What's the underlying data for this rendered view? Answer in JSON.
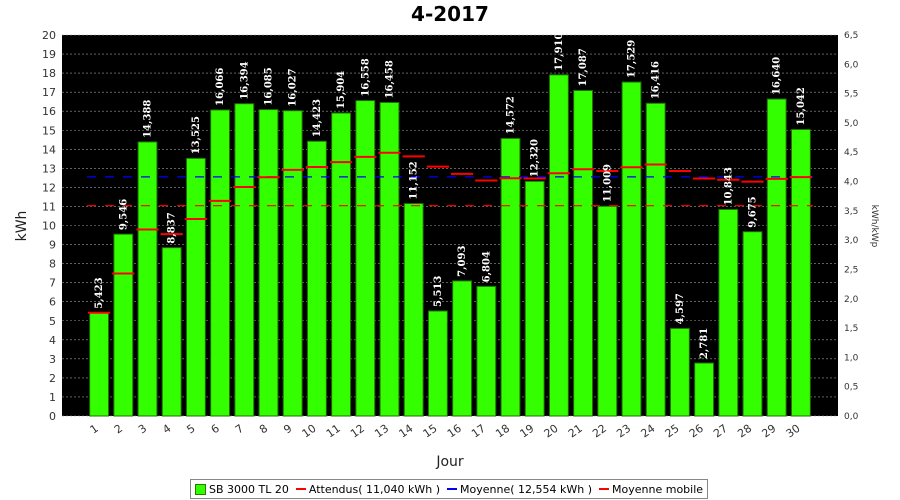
{
  "chart_data": {
    "type": "bar",
    "title": "4-2017",
    "xlabel": "Jour",
    "ylabel": "kWh",
    "ylabel_right": "kWh/kWp",
    "ylim": [
      0,
      20
    ],
    "ylim_right": [
      0,
      6.5
    ],
    "yticks": [
      "0",
      "1",
      "2",
      "3",
      "4",
      "5",
      "6",
      "7",
      "8",
      "9",
      "10",
      "11",
      "12",
      "13",
      "14",
      "15",
      "16",
      "17",
      "18",
      "19",
      "20"
    ],
    "yticks_right": [
      "0,0",
      "0,5",
      "1,0",
      "1,5",
      "2,0",
      "2,5",
      "3,0",
      "3,5",
      "4,0",
      "4,5",
      "5,0",
      "5,5",
      "6,0",
      "6,5"
    ],
    "categories": [
      "1",
      "2",
      "3",
      "4",
      "5",
      "6",
      "7",
      "8",
      "9",
      "10",
      "11",
      "12",
      "13",
      "14",
      "15",
      "16",
      "17",
      "18",
      "19",
      "20",
      "21",
      "22",
      "23",
      "24",
      "25",
      "26",
      "27",
      "28",
      "29",
      "30"
    ],
    "series": [
      {
        "name": "SB 3000 TL 20",
        "color": "#33ff00",
        "values": [
          5.423,
          9.546,
          14.388,
          8.837,
          13.525,
          16.066,
          16.394,
          16.085,
          16.027,
          14.423,
          15.904,
          16.558,
          16.458,
          11.152,
          5.513,
          7.093,
          6.804,
          14.572,
          12.32,
          17.91,
          17.087,
          11.009,
          17.529,
          16.416,
          4.597,
          2.781,
          10.843,
          9.675,
          16.64,
          15.042
        ],
        "labels": [
          "5,423",
          "9,546",
          "14,388",
          "8,837",
          "13,525",
          "16,066",
          "16,394",
          "16,085",
          "16,027",
          "14,423",
          "15,904",
          "16,558",
          "16,458",
          "11,152",
          "5,513",
          "7,093",
          "6,804",
          "14,572",
          "12,320",
          "17,910",
          "17,087",
          "11,009",
          "17,529",
          "16,416",
          "4,597",
          "2,781",
          "10,843",
          "9,675",
          "16,640",
          "15,042"
        ]
      },
      {
        "name": "Attendus( 11,040 kWh )",
        "color": "#ff0000",
        "type": "hline",
        "value": 11.04
      },
      {
        "name": "Moyenne( 12,554 kWh )",
        "color": "#0000ff",
        "type": "hline",
        "value": 12.554
      },
      {
        "name": "Moyenne mobile",
        "color": "#ff0000",
        "type": "step",
        "values": [
          5.42,
          7.48,
          9.79,
          9.55,
          10.34,
          11.29,
          12.02,
          12.53,
          12.92,
          13.07,
          13.33,
          13.6,
          13.82,
          13.63,
          13.09,
          12.71,
          12.36,
          12.48,
          12.47,
          12.74,
          12.95,
          12.86,
          13.06,
          13.2,
          12.86,
          12.47,
          12.4,
          12.3,
          12.45,
          12.54
        ]
      }
    ],
    "grid": true,
    "legend": "bottom-center"
  }
}
